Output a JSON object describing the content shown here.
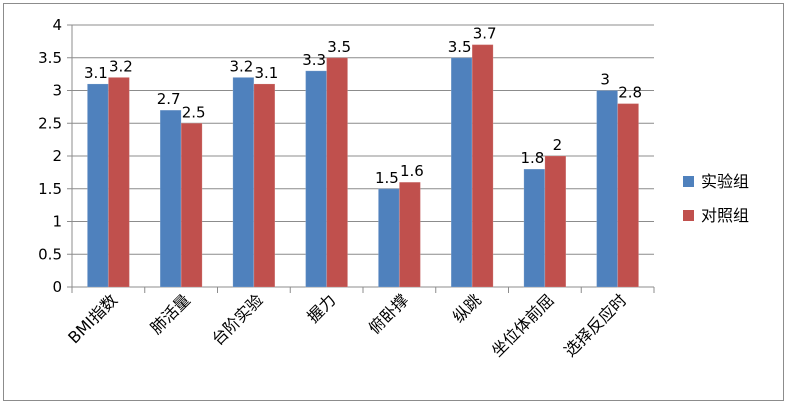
{
  "chart_data": {
    "type": "bar",
    "title": "",
    "xlabel": "",
    "ylabel": "",
    "categories": [
      "BMI指数",
      "肺活量",
      "台阶实验",
      "握力",
      "俯卧撑",
      "纵跳",
      "坐位体前屈",
      "选择反应时"
    ],
    "series": [
      {
        "name": "实验组",
        "values": [
          3.1,
          2.7,
          3.2,
          3.3,
          1.5,
          3.5,
          1.8,
          3
        ],
        "color": "#4F81BD"
      },
      {
        "name": "对照组",
        "values": [
          3.2,
          2.5,
          3.1,
          3.5,
          1.6,
          3.7,
          2,
          2.8
        ],
        "color": "#C0504D"
      }
    ],
    "ylim": [
      0,
      4
    ],
    "yticks": [
      "0",
      "0.5",
      "1",
      "1.5",
      "2",
      "2.5",
      "3",
      "3.5",
      "4"
    ],
    "grid": true,
    "legend_position": "right",
    "data_labels": true
  }
}
